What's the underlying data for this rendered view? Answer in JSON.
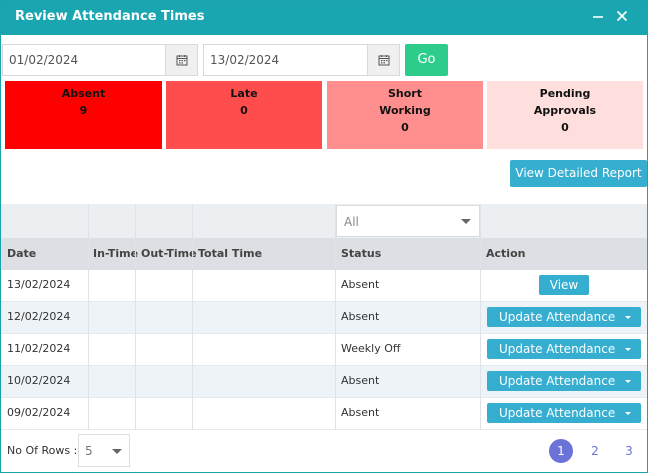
{
  "window": {
    "title": "Review Attendance Times",
    "minimize_icon": "minimize-icon",
    "close_icon": "close-icon"
  },
  "filters": {
    "from_date": "01/02/2024",
    "to_date": "13/02/2024",
    "calendar_icon": "calendar-icon",
    "go_label": "Go"
  },
  "stats": [
    {
      "label_line1": "Absent",
      "label_line2": "",
      "count": "9",
      "color": "#ff0000"
    },
    {
      "label_line1": "Late",
      "label_line2": "",
      "count": "0",
      "color": "#ff4c4c"
    },
    {
      "label_line1": "Short",
      "label_line2": "Working",
      "count": "0",
      "color": "#ff8f8f"
    },
    {
      "label_line1": "Pending",
      "label_line2": "Approvals",
      "count": "0",
      "color": "#ffdede"
    }
  ],
  "report_button": "View Detailed Report",
  "status_filter": {
    "value": "All"
  },
  "table": {
    "headers": [
      "Date",
      "In-Time",
      "Out-Time",
      "Total Time",
      "Status",
      "Action"
    ],
    "rows": [
      {
        "date": "13/02/2024",
        "in_time": "",
        "out_time": "",
        "total_time": "",
        "status": "Absent",
        "action": "View"
      },
      {
        "date": "12/02/2024",
        "in_time": "",
        "out_time": "",
        "total_time": "",
        "status": "Absent",
        "action": "Update Attendance"
      },
      {
        "date": "11/02/2024",
        "in_time": "",
        "out_time": "",
        "total_time": "",
        "status": "Weekly Off",
        "action": "Update Attendance"
      },
      {
        "date": "10/02/2024",
        "in_time": "",
        "out_time": "",
        "total_time": "",
        "status": "Absent",
        "action": "Update Attendance"
      },
      {
        "date": "09/02/2024",
        "in_time": "",
        "out_time": "",
        "total_time": "",
        "status": "Absent",
        "action": "Update Attendance"
      }
    ]
  },
  "footer": {
    "rows_label": "No Of Rows :",
    "rows_value": "5",
    "pages": [
      "1",
      "2",
      "3"
    ],
    "current_page": "1"
  },
  "colors": {
    "accent": "#1aa6b0",
    "button": "#35aed0",
    "go": "#2ecc8a",
    "pagination": "#6b72d8"
  }
}
